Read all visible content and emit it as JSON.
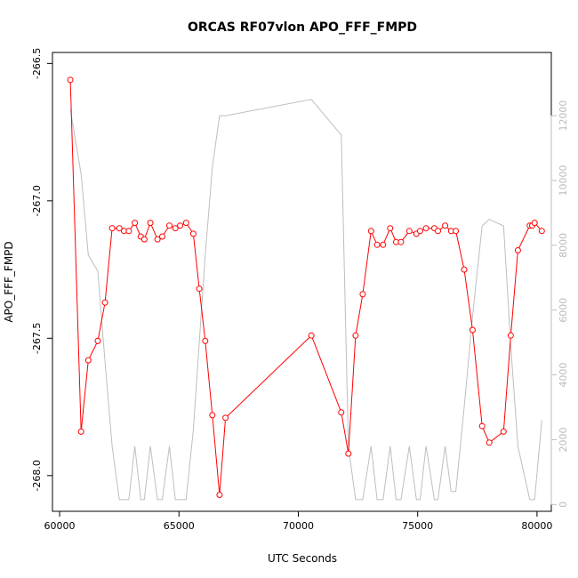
{
  "chart_data": {
    "type": "line",
    "title": "ORCAS RF07vlon APO_FFF_FMPD",
    "xlabel": "UTC Seconds",
    "ylabel": "APO_FFF_FMPD",
    "xlim": [
      59700,
      80600
    ],
    "ylim_left": [
      -268.13,
      -266.46
    ],
    "ylim_right": [
      -210,
      13950
    ],
    "x_ticks": [
      60000,
      65000,
      70000,
      75000,
      80000
    ],
    "y_ticks_left": [
      -268.0,
      -267.5,
      -267.0,
      -266.5
    ],
    "y_ticks_right": [
      0,
      2000,
      4000,
      6000,
      8000,
      10000,
      12000
    ],
    "x_tick_labels": [
      "60000",
      "65000",
      "70000",
      "75000",
      "80000"
    ],
    "y_tick_labels_left": [
      "-268.0",
      "-267.5",
      "-267.0",
      "-266.5"
    ],
    "y_tick_labels_right": [
      "0",
      "2000",
      "4000",
      "6000",
      "8000",
      "10000",
      "12000"
    ],
    "grid": false,
    "colors": {
      "primary": "#ff0000",
      "secondary": "#bebebe",
      "axis": "#000000",
      "right_axis": "#bebebe"
    },
    "series": [
      {
        "axis": "left",
        "style": "line+points",
        "x": [
          60450,
          60900,
          61200,
          61600,
          61900,
          62200,
          62500,
          62700,
          62900,
          63150,
          63400,
          63550,
          63800,
          64100,
          64300,
          64600,
          64850,
          65050,
          65300,
          65600,
          65850,
          66100,
          66400,
          66700,
          66950,
          70550,
          71800,
          72100,
          72400,
          72700,
          73050,
          73300,
          73550,
          73850,
          74100,
          74300,
          74650,
          74950,
          75100,
          75350,
          75700,
          75850,
          76150,
          76400,
          76600,
          76950,
          77300,
          77700,
          78000,
          78600,
          78900,
          79200,
          79700,
          79800,
          79900,
          80200
        ],
        "y": [
          -266.56,
          -267.84,
          -267.58,
          -267.51,
          -267.37,
          -267.1,
          -267.1,
          -267.11,
          -267.11,
          -267.08,
          -267.13,
          -267.14,
          -267.08,
          -267.14,
          -267.13,
          -267.09,
          -267.1,
          -267.09,
          -267.08,
          -267.12,
          -267.32,
          -267.51,
          -267.78,
          -268.07,
          -267.79,
          -267.49,
          -267.77,
          -267.92,
          -267.49,
          -267.34,
          -267.11,
          -267.16,
          -267.16,
          -267.1,
          -267.15,
          -267.15,
          -267.11,
          -267.12,
          -267.11,
          -267.1,
          -267.1,
          -267.11,
          -267.09,
          -267.11,
          -267.11,
          -267.25,
          -267.47,
          -267.82,
          -267.88,
          -267.84,
          -267.49,
          -267.18,
          -267.09,
          -267.09,
          -267.08,
          -267.11
        ]
      },
      {
        "axis": "right",
        "style": "line",
        "x": [
          60450,
          60900,
          61200,
          61600,
          61900,
          62200,
          62500,
          62700,
          62900,
          63150,
          63400,
          63550,
          63800,
          64100,
          64300,
          64600,
          64850,
          65050,
          65300,
          65600,
          65850,
          66100,
          66400,
          66700,
          66950,
          70550,
          71800,
          72100,
          72400,
          72700,
          73050,
          73300,
          73550,
          73850,
          74100,
          74300,
          74650,
          74950,
          75100,
          75350,
          75700,
          75850,
          76150,
          76400,
          76600,
          76950,
          77300,
          77700,
          78000,
          78600,
          78900,
          79200,
          79700,
          79800,
          79900,
          80200
        ],
        "y": [
          12200,
          10200,
          7700,
          7200,
          4400,
          1800,
          150,
          150,
          150,
          1800,
          150,
          150,
          1800,
          150,
          150,
          1800,
          150,
          150,
          150,
          2300,
          5000,
          7700,
          10400,
          12000,
          12000,
          12500,
          11400,
          1800,
          150,
          150,
          1800,
          150,
          150,
          1800,
          150,
          150,
          1800,
          150,
          150,
          1800,
          150,
          150,
          1800,
          400,
          400,
          3000,
          5800,
          8600,
          8800,
          8600,
          4900,
          1800,
          150,
          150,
          150,
          2600
        ]
      }
    ]
  }
}
